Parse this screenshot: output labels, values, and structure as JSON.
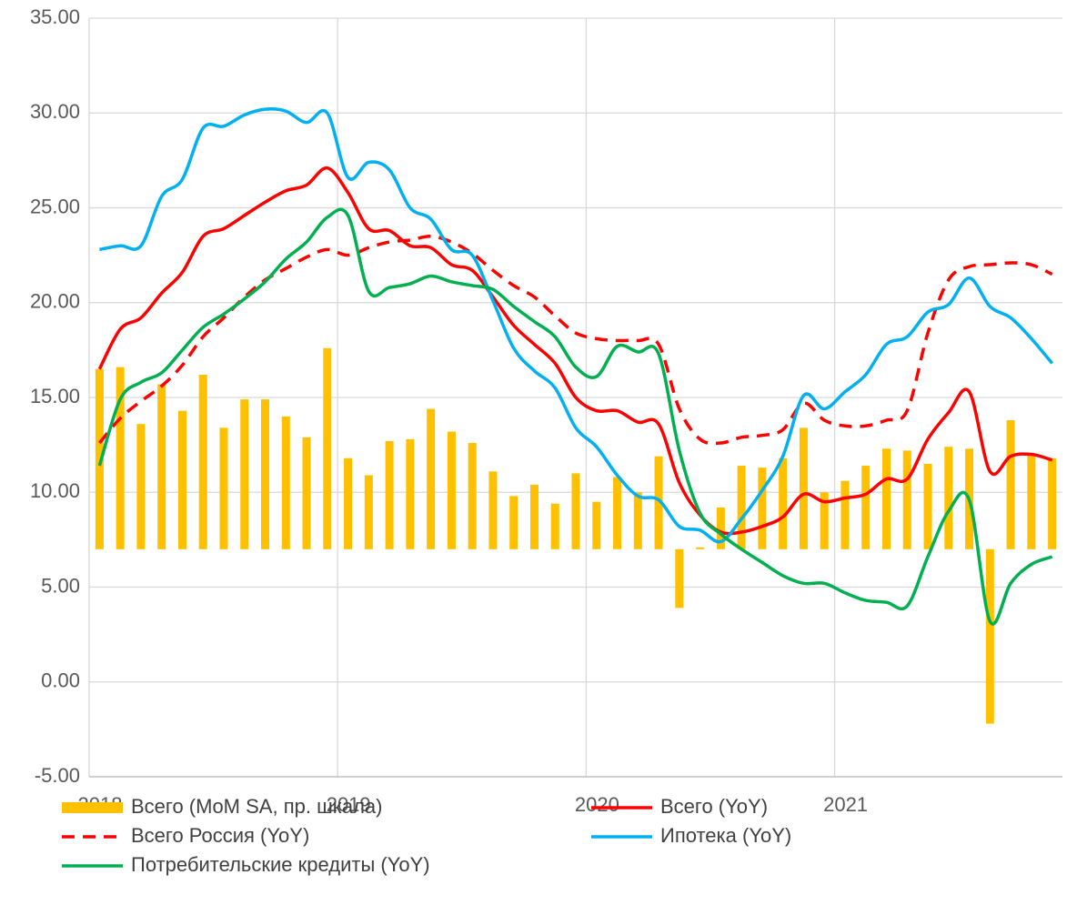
{
  "chart_data": {
    "type": "combo",
    "categories": [
      null,
      null,
      null,
      null,
      null,
      null,
      null,
      null,
      null,
      null,
      null,
      null,
      null,
      null,
      null,
      null,
      null,
      null,
      null,
      null,
      null,
      null,
      null,
      null,
      null,
      null,
      null,
      null,
      null,
      null,
      null,
      null,
      null,
      null,
      null,
      null,
      null,
      null,
      null,
      null,
      null,
      null,
      null,
      null,
      null,
      null,
      null
    ],
    "xticks": [
      2018,
      2019,
      2020,
      2021
    ],
    "ylim": [
      -5,
      35
    ],
    "yticks": [
      {
        "value": -5,
        "label": "-5.00"
      },
      {
        "value": 0,
        "label": "0.00"
      },
      {
        "value": 5,
        "label": "5.00"
      },
      {
        "value": 10,
        "label": "10.00"
      },
      {
        "value": 15,
        "label": "15.00"
      },
      {
        "value": 20,
        "label": "20.00"
      },
      {
        "value": 25,
        "label": "25.00"
      },
      {
        "value": 30,
        "label": "30.00"
      },
      {
        "value": 35,
        "label": "35.00"
      }
    ],
    "y2lim": [
      -12,
      28
    ],
    "grid": true,
    "legend": "bottom",
    "series": [
      {
        "name": "Всего (MoM SA, пр. шкала)",
        "type": "bar",
        "axis": "y2",
        "color": "#FFC000",
        "values": [
          9.5,
          9.6,
          6.6,
          8.7,
          7.3,
          9.2,
          6.4,
          7.9,
          7.9,
          7.0,
          5.9,
          10.6,
          4.8,
          3.9,
          5.7,
          5.8,
          7.4,
          6.2,
          5.6,
          4.1,
          2.8,
          3.4,
          2.4,
          4.0,
          2.5,
          3.8,
          3.0,
          4.9,
          -3.1,
          0.1,
          2.2,
          4.4,
          4.3,
          4.8,
          6.4,
          3.0,
          3.6,
          4.4,
          5.3,
          5.2,
          4.5,
          5.4,
          5.3,
          -9.2,
          6.8,
          5.0,
          4.8
        ]
      },
      {
        "name": "Всего (YoY)",
        "type": "line",
        "color": "#FF0000",
        "values": [
          16.5,
          18.6,
          19.2,
          20.5,
          21.6,
          23.5,
          23.9,
          24.6,
          25.3,
          25.9,
          26.2,
          27.1,
          25.8,
          23.9,
          23.8,
          23.0,
          22.9,
          22.0,
          21.7,
          20.3,
          18.8,
          17.8,
          16.8,
          15.0,
          14.3,
          14.3,
          13.7,
          13.6,
          10.5,
          8.8,
          7.9,
          7.9,
          8.2,
          8.7,
          9.9,
          9.5,
          9.7,
          9.9,
          10.7,
          10.7,
          12.8,
          14.2,
          15.3,
          11.1,
          11.9,
          12.0,
          11.7
        ]
      },
      {
        "name": "Всего Россия (YoY)",
        "type": "line",
        "dashed": true,
        "color": "#FF0000",
        "values": [
          12.6,
          13.9,
          14.8,
          15.6,
          16.7,
          18.2,
          19.2,
          20.3,
          21.2,
          21.8,
          22.4,
          22.8,
          22.5,
          22.9,
          23.2,
          23.3,
          23.5,
          23.2,
          22.6,
          21.7,
          20.9,
          20.3,
          19.3,
          18.4,
          18.1,
          18.0,
          18.0,
          17.8,
          14.4,
          12.8,
          12.6,
          12.9,
          13.0,
          13.3,
          14.7,
          13.8,
          13.5,
          13.5,
          13.8,
          14.3,
          18.4,
          21.2,
          21.9,
          22.0,
          22.1,
          22.0,
          21.5
        ]
      },
      {
        "name": "Ипотека (YoY)",
        "type": "line",
        "color": "#00B0F0",
        "values": [
          22.8,
          23.0,
          23.0,
          25.6,
          26.5,
          29.2,
          29.3,
          29.9,
          30.2,
          30.1,
          29.5,
          30.0,
          26.6,
          27.4,
          27.0,
          25.0,
          24.4,
          22.8,
          22.5,
          20.1,
          17.6,
          16.4,
          15.5,
          13.4,
          12.4,
          10.9,
          9.8,
          9.6,
          8.2,
          8.0,
          7.4,
          8.6,
          10.1,
          11.9,
          15.1,
          14.4,
          15.3,
          16.2,
          17.8,
          18.2,
          19.5,
          19.9,
          21.3,
          19.8,
          19.2,
          18.1,
          16.8
        ]
      },
      {
        "name": "Потребительские кредиты (YoY)",
        "type": "line",
        "color": "#00B050",
        "values": [
          11.4,
          14.9,
          15.8,
          16.3,
          17.5,
          18.7,
          19.4,
          20.2,
          21.1,
          22.3,
          23.2,
          24.5,
          24.6,
          20.6,
          20.8,
          21.0,
          21.4,
          21.1,
          20.9,
          20.7,
          19.8,
          19.0,
          18.2,
          16.6,
          16.1,
          17.7,
          17.4,
          17.3,
          12.2,
          8.9,
          7.8,
          7.0,
          6.3,
          5.6,
          5.2,
          5.2,
          4.7,
          4.3,
          4.2,
          4.0,
          6.6,
          9.0,
          9.6,
          3.2,
          5.2,
          6.2,
          6.6
        ]
      }
    ]
  }
}
